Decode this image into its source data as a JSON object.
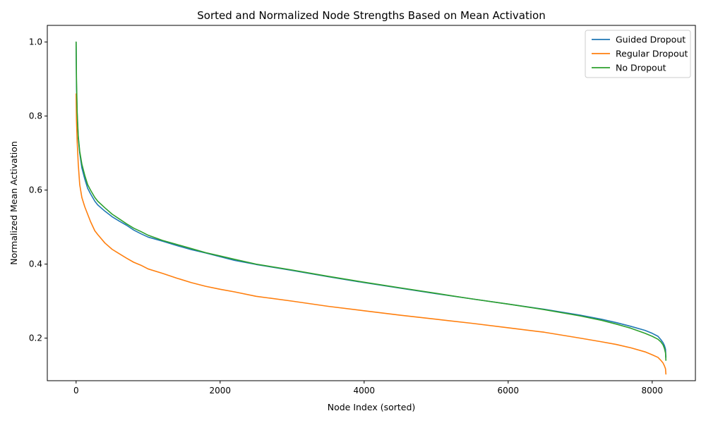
{
  "chart_data": {
    "type": "line",
    "title": "Sorted and Normalized Node Strengths Based on Mean Activation",
    "xlabel": "Node Index (sorted)",
    "ylabel": "Normalized Mean Activation",
    "xlim": [
      -400,
      8600
    ],
    "ylim": [
      0.085,
      1.045
    ],
    "xticks": [
      0,
      2000,
      4000,
      6000,
      8000
    ],
    "yticks": [
      0.2,
      0.4,
      0.6,
      0.8,
      1.0
    ],
    "xtick_labels": [
      "0",
      "2000",
      "4000",
      "6000",
      "8000"
    ],
    "ytick_labels": [
      "0.2",
      "0.4",
      "0.6",
      "0.8",
      "1.0"
    ],
    "grid": false,
    "legend_position": "top-right",
    "series": [
      {
        "name": "Guided Dropout",
        "color": "#1f77b4",
        "x": [
          0,
          5,
          15,
          30,
          50,
          80,
          120,
          160,
          200,
          260,
          300,
          400,
          500,
          600,
          700,
          800,
          900,
          1000,
          1200,
          1400,
          1600,
          1800,
          2000,
          2200,
          2500,
          3000,
          3500,
          4000,
          4500,
          5000,
          5500,
          6000,
          6500,
          7000,
          7300,
          7500,
          7700,
          7900,
          8000,
          8080,
          8120,
          8150,
          8170,
          8185,
          8190
        ],
        "y": [
          1.0,
          0.88,
          0.8,
          0.74,
          0.7,
          0.66,
          0.63,
          0.605,
          0.59,
          0.57,
          0.56,
          0.543,
          0.528,
          0.516,
          0.505,
          0.492,
          0.482,
          0.473,
          0.462,
          0.45,
          0.439,
          0.43,
          0.42,
          0.41,
          0.399,
          0.383,
          0.366,
          0.35,
          0.335,
          0.32,
          0.306,
          0.292,
          0.278,
          0.262,
          0.251,
          0.242,
          0.232,
          0.221,
          0.213,
          0.205,
          0.196,
          0.188,
          0.18,
          0.17,
          0.148
        ]
      },
      {
        "name": "Regular Dropout",
        "color": "#ff7f0e",
        "x": [
          0,
          5,
          15,
          30,
          50,
          80,
          120,
          160,
          200,
          260,
          300,
          400,
          500,
          600,
          700,
          800,
          900,
          1000,
          1200,
          1400,
          1600,
          1800,
          2000,
          2200,
          2500,
          3000,
          3500,
          4000,
          4500,
          5000,
          5500,
          6000,
          6500,
          7000,
          7300,
          7500,
          7700,
          7900,
          8000,
          8080,
          8120,
          8150,
          8170,
          8185,
          8190
        ],
        "y": [
          0.86,
          0.79,
          0.73,
          0.67,
          0.615,
          0.58,
          0.555,
          0.535,
          0.515,
          0.49,
          0.48,
          0.457,
          0.44,
          0.428,
          0.416,
          0.405,
          0.397,
          0.387,
          0.375,
          0.362,
          0.35,
          0.34,
          0.332,
          0.325,
          0.313,
          0.3,
          0.286,
          0.274,
          0.262,
          0.251,
          0.24,
          0.228,
          0.216,
          0.2,
          0.19,
          0.183,
          0.174,
          0.163,
          0.155,
          0.148,
          0.14,
          0.133,
          0.125,
          0.117,
          0.103
        ]
      },
      {
        "name": "No Dropout",
        "color": "#2ca02c",
        "x": [
          0,
          5,
          15,
          30,
          50,
          80,
          120,
          160,
          200,
          260,
          300,
          400,
          500,
          600,
          700,
          800,
          900,
          1000,
          1200,
          1400,
          1600,
          1800,
          2000,
          2200,
          2500,
          3000,
          3500,
          4000,
          4500,
          5000,
          5500,
          6000,
          6500,
          7000,
          7300,
          7500,
          7700,
          7900,
          8000,
          8080,
          8120,
          8150,
          8170,
          8185,
          8190
        ],
        "y": [
          1.0,
          0.9,
          0.81,
          0.745,
          0.705,
          0.67,
          0.64,
          0.615,
          0.6,
          0.58,
          0.57,
          0.552,
          0.535,
          0.522,
          0.509,
          0.497,
          0.488,
          0.478,
          0.464,
          0.453,
          0.442,
          0.431,
          0.422,
          0.413,
          0.4,
          0.384,
          0.367,
          0.351,
          0.336,
          0.321,
          0.306,
          0.292,
          0.277,
          0.26,
          0.248,
          0.238,
          0.227,
          0.213,
          0.205,
          0.197,
          0.19,
          0.182,
          0.172,
          0.16,
          0.14
        ]
      }
    ]
  }
}
